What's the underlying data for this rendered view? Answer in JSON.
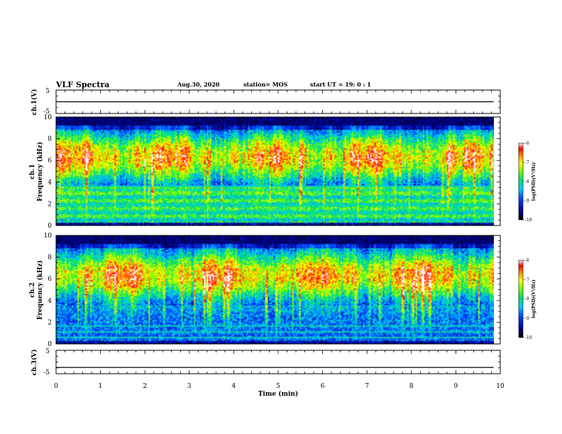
{
  "header": {
    "title": "VLF Spectra",
    "date": "Aug.30, 2020",
    "station": "station= MOS",
    "start": "start  UT =   19: 0  : 1"
  },
  "chart_data": [
    {
      "id": "ch1-waveform",
      "type": "line",
      "ylabel": "ch.1(V)",
      "ylim": [
        -5,
        5
      ],
      "yticks": [
        "5",
        "-5"
      ],
      "xlim": [
        0,
        10
      ],
      "trace_level": 0
    },
    {
      "id": "ch1-spectrogram",
      "type": "heatmap",
      "ylabel_line1": "ch.1",
      "ylabel_line2": "Frequency  (kHz)",
      "ylim": [
        0,
        10
      ],
      "yticks": [
        "0",
        "2",
        "4",
        "6",
        "8",
        "10"
      ],
      "xlim": [
        0,
        10
      ],
      "data_end_min": 9.85,
      "colorbar": {
        "range": [
          -10,
          -6
        ],
        "ticks": [
          "-6",
          "-7",
          "-8",
          "-9",
          "-10"
        ],
        "label": "log(PSD)(V²/Hz)"
      }
    },
    {
      "id": "ch2-spectrogram",
      "type": "heatmap",
      "ylabel_line1": "ch.2",
      "ylabel_line2": "Frequency  (kHz)",
      "ylim": [
        0,
        10
      ],
      "yticks": [
        "0",
        "2",
        "4",
        "6",
        "8",
        "10"
      ],
      "xlim": [
        0,
        10
      ],
      "data_end_min": 9.85,
      "colorbar": {
        "range": [
          -10,
          -6
        ],
        "ticks": [
          "-6",
          "-7",
          "-8",
          "-9",
          "-10"
        ],
        "label": "log(PSD)(V²/Hz)"
      }
    },
    {
      "id": "ch3-waveform",
      "type": "line",
      "ylabel": "ch.3(V)",
      "ylim": [
        -5,
        5
      ],
      "yticks": [
        "5",
        "-5"
      ],
      "xlim": [
        0,
        10
      ],
      "trace_level": -2.3
    }
  ],
  "xaxis": {
    "label": "Time  (min)",
    "ticks": [
      "0",
      "1",
      "2",
      "3",
      "4",
      "5",
      "6",
      "7",
      "8",
      "9",
      "10"
    ]
  }
}
